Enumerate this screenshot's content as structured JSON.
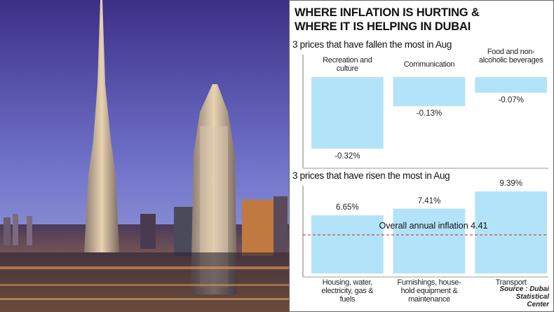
{
  "title": [
    "WHERE INFLATION IS HURTING  &",
    "WHERE IT IS HELPING IN DUBAI"
  ],
  "source": "Source : Dubai Statistical Center",
  "chart_data": [
    {
      "type": "bar",
      "title": "3 prices that have fallen the most in Aug",
      "categories": [
        "Recreation and culture",
        "Communication",
        "Food and non-alcoholic beverages"
      ],
      "values": [
        -0.32,
        -0.13,
        -0.07
      ],
      "value_labels": [
        "-0.32%",
        "-0.13%",
        "-0.07%"
      ],
      "color": "#b3e3f8",
      "ylim": [
        -0.35,
        0
      ]
    },
    {
      "type": "bar",
      "title": "3 prices that have risen the most in Aug",
      "categories": [
        "Housing, water, electricity, gas & fuels",
        "Furnishings, house-hold equipment & maintenance",
        "Transport"
      ],
      "values": [
        6.65,
        7.41,
        9.39
      ],
      "value_labels": [
        "6.65%",
        "7.41%",
        "9.39%"
      ],
      "color": "#b3e3f8",
      "ylim": [
        0,
        10
      ],
      "reference_line": {
        "value": 4.41,
        "label": "Overall annual inflation 4.41",
        "color": "#c0282c"
      }
    }
  ]
}
